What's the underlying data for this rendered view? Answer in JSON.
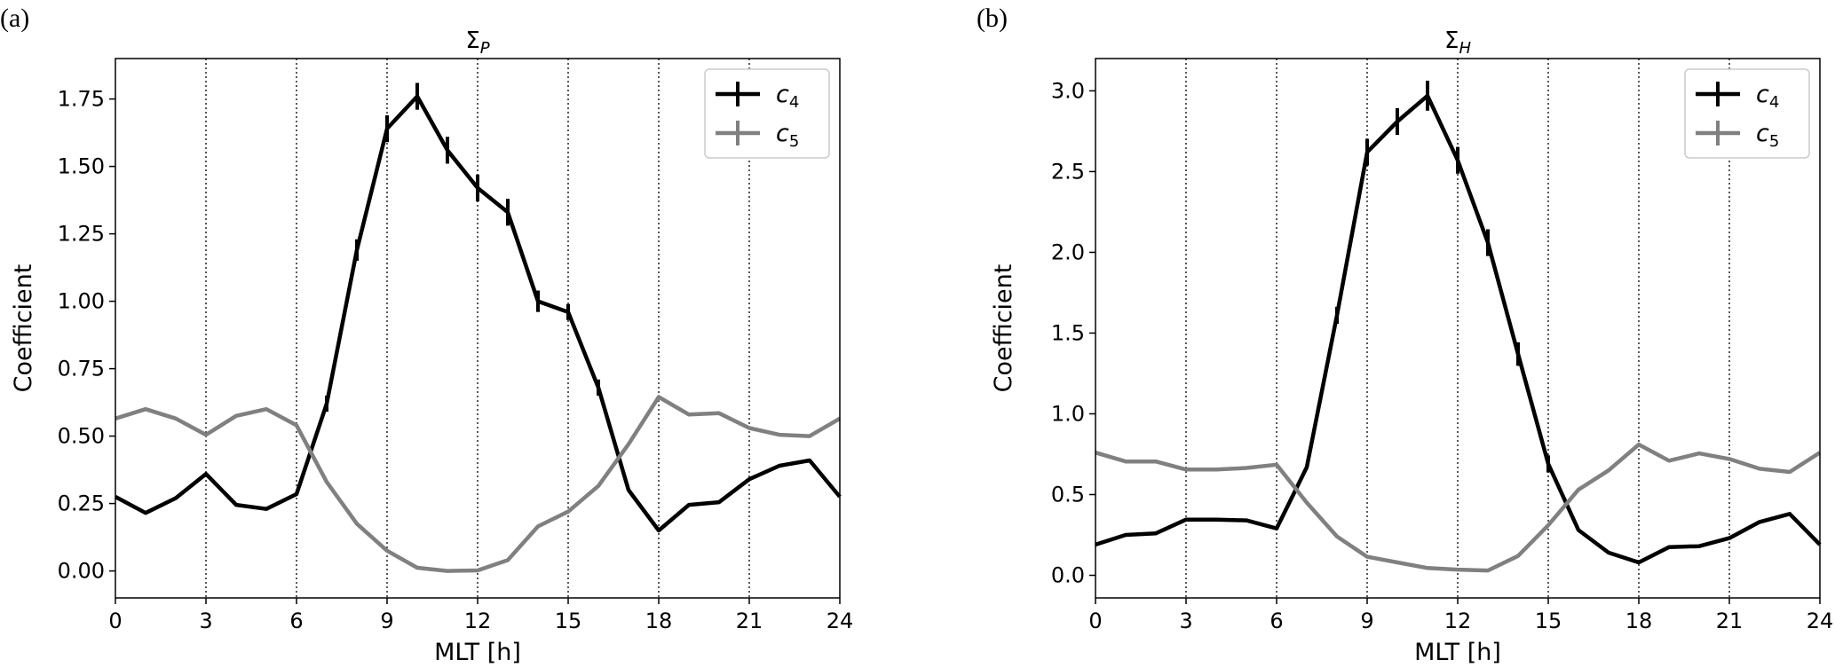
{
  "chart_data": [
    {
      "type": "line",
      "panel_label": "(a)",
      "title_main": "Σ",
      "title_sub": "P",
      "xlabel": "MLT [h]",
      "ylabel": "Coefficient",
      "xlim": [
        0,
        24
      ],
      "ylim": [
        -0.1,
        1.9
      ],
      "xticks": [
        0,
        3,
        6,
        9,
        12,
        15,
        18,
        21,
        24
      ],
      "yticks": [
        0.0,
        0.25,
        0.5,
        0.75,
        1.0,
        1.25,
        1.5,
        1.75
      ],
      "ytick_labels": [
        "0.00",
        "0.25",
        "0.50",
        "0.75",
        "1.00",
        "1.25",
        "1.50",
        "1.75"
      ],
      "vertical_gridlines_at": [
        3,
        6,
        9,
        12,
        15,
        18,
        21
      ],
      "legend_position": "top-right",
      "series": [
        {
          "name": "c",
          "name_sub": "4",
          "color": "#000000",
          "x": [
            0,
            1,
            2,
            3,
            4,
            5,
            6,
            7,
            8,
            9,
            10,
            11,
            12,
            13,
            14,
            15,
            16,
            17,
            18,
            19,
            20,
            21,
            22,
            23,
            24
          ],
          "values": [
            0.275,
            0.215,
            0.27,
            0.36,
            0.245,
            0.23,
            0.285,
            0.62,
            1.19,
            1.64,
            1.76,
            1.56,
            1.42,
            1.33,
            1.0,
            0.96,
            0.68,
            0.3,
            0.15,
            0.245,
            0.255,
            0.34,
            0.39,
            0.41,
            0.275
          ],
          "errors": [
            0,
            0,
            0,
            0,
            0,
            0,
            0,
            0.01,
            0.02,
            0.03,
            0.03,
            0.03,
            0.03,
            0.03,
            0.02,
            0.01,
            0.01,
            0,
            0,
            0,
            0,
            0,
            0,
            0,
            0
          ]
        },
        {
          "name": "c",
          "name_sub": "5",
          "color": "#808080",
          "x": [
            0,
            1,
            2,
            3,
            4,
            5,
            6,
            7,
            8,
            9,
            10,
            11,
            12,
            13,
            14,
            15,
            16,
            17,
            18,
            19,
            20,
            21,
            22,
            23,
            24
          ],
          "values": [
            0.565,
            0.6,
            0.565,
            0.505,
            0.575,
            0.6,
            0.54,
            0.33,
            0.175,
            0.075,
            0.012,
            0.0,
            0.002,
            0.04,
            0.165,
            0.22,
            0.315,
            0.47,
            0.645,
            0.58,
            0.585,
            0.53,
            0.505,
            0.5,
            0.565
          ],
          "errors": [
            0,
            0,
            0,
            0,
            0,
            0,
            0,
            0,
            0,
            0,
            0,
            0,
            0,
            0,
            0,
            0,
            0,
            0,
            0,
            0,
            0,
            0,
            0,
            0,
            0
          ]
        }
      ]
    },
    {
      "type": "line",
      "panel_label": "(b)",
      "title_main": "Σ",
      "title_sub": "H",
      "xlabel": "MLT [h]",
      "ylabel": "Coefficient",
      "xlim": [
        0,
        24
      ],
      "ylim": [
        -0.14,
        3.2
      ],
      "xticks": [
        0,
        3,
        6,
        9,
        12,
        15,
        18,
        21,
        24
      ],
      "yticks": [
        0.0,
        0.5,
        1.0,
        1.5,
        2.0,
        2.5,
        3.0
      ],
      "ytick_labels": [
        "0.0",
        "0.5",
        "1.0",
        "1.5",
        "2.0",
        "2.5",
        "3.0"
      ],
      "vertical_gridlines_at": [
        3,
        6,
        9,
        12,
        15,
        18,
        21
      ],
      "legend_position": "top-right",
      "series": [
        {
          "name": "c",
          "name_sub": "4",
          "color": "#000000",
          "x": [
            0,
            1,
            2,
            3,
            4,
            5,
            6,
            7,
            8,
            9,
            10,
            11,
            12,
            13,
            14,
            15,
            16,
            17,
            18,
            19,
            20,
            21,
            22,
            23,
            24
          ],
          "values": [
            0.19,
            0.25,
            0.26,
            0.345,
            0.345,
            0.34,
            0.29,
            0.67,
            1.61,
            2.62,
            2.81,
            2.97,
            2.57,
            2.06,
            1.37,
            0.69,
            0.28,
            0.14,
            0.08,
            0.175,
            0.18,
            0.23,
            0.33,
            0.38,
            0.19
          ],
          "errors": [
            0,
            0,
            0,
            0,
            0,
            0,
            0,
            0,
            0.02,
            0.05,
            0.05,
            0.06,
            0.05,
            0.05,
            0.04,
            0.02,
            0,
            0,
            0,
            0,
            0,
            0,
            0,
            0,
            0
          ]
        },
        {
          "name": "c",
          "name_sub": "5",
          "color": "#808080",
          "x": [
            0,
            1,
            2,
            3,
            4,
            5,
            6,
            7,
            8,
            9,
            10,
            11,
            12,
            13,
            14,
            15,
            16,
            17,
            18,
            19,
            20,
            21,
            22,
            23,
            24
          ],
          "values": [
            0.76,
            0.705,
            0.705,
            0.655,
            0.655,
            0.665,
            0.685,
            0.45,
            0.24,
            0.115,
            0.08,
            0.045,
            0.035,
            0.03,
            0.12,
            0.31,
            0.53,
            0.65,
            0.81,
            0.71,
            0.755,
            0.72,
            0.66,
            0.64,
            0.76
          ],
          "errors": [
            0,
            0,
            0,
            0,
            0,
            0,
            0,
            0,
            0,
            0,
            0,
            0,
            0,
            0,
            0,
            0,
            0,
            0,
            0,
            0,
            0,
            0,
            0,
            0,
            0
          ]
        }
      ]
    }
  ]
}
